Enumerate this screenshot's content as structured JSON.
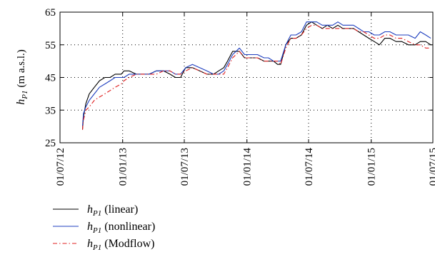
{
  "chart_data": {
    "type": "line",
    "title": "",
    "xlabel": "",
    "ylabel": {
      "base": "h",
      "sub": "P1",
      "unit": "(m a.s.l.)"
    },
    "ylim": [
      25,
      65
    ],
    "yticks": [
      25,
      35,
      45,
      55,
      65
    ],
    "xlim": [
      "2012-07-01",
      "2015-07-01"
    ],
    "xtick_labels": [
      "01/07/12",
      "01/01/13",
      "01/07/13",
      "01/01/14",
      "01/07/14",
      "01/01/15",
      "01/07/15"
    ],
    "xtick_dates": [
      "2012-07-01",
      "2013-01-01",
      "2013-07-01",
      "2014-01-01",
      "2014-07-01",
      "2015-01-01",
      "2015-07-01"
    ],
    "grid": true,
    "legend_placement": "below",
    "series": [
      {
        "name": "(linear)",
        "color": "#000000",
        "dash": "solid",
        "x": [
          "2012-09-05",
          "2012-09-08",
          "2012-09-15",
          "2012-09-25",
          "2012-10-10",
          "2012-10-25",
          "2012-11-10",
          "2012-11-25",
          "2012-12-10",
          "2012-12-28",
          "2013-01-05",
          "2013-01-20",
          "2013-02-10",
          "2013-03-01",
          "2013-03-20",
          "2013-04-10",
          "2013-05-01",
          "2013-05-20",
          "2013-06-05",
          "2013-06-20",
          "2013-07-05",
          "2013-07-25",
          "2013-08-15",
          "2013-09-05",
          "2013-09-25",
          "2013-10-10",
          "2013-10-25",
          "2013-11-05",
          "2013-11-20",
          "2013-12-10",
          "2013-12-25",
          "2014-01-15",
          "2014-02-01",
          "2014-02-20",
          "2014-03-05",
          "2014-03-20",
          "2014-04-01",
          "2014-04-10",
          "2014-04-25",
          "2014-05-10",
          "2014-05-25",
          "2014-06-10",
          "2014-06-25",
          "2014-07-10",
          "2014-07-25",
          "2014-08-10",
          "2014-08-25",
          "2014-09-10",
          "2014-09-25",
          "2014-10-10",
          "2014-10-25",
          "2014-11-10",
          "2014-11-25",
          "2014-12-10",
          "2014-12-25",
          "2015-01-10",
          "2015-01-25",
          "2015-02-10",
          "2015-02-25",
          "2015-03-15",
          "2015-04-01",
          "2015-04-20",
          "2015-05-10",
          "2015-05-25",
          "2015-06-10",
          "2015-06-25"
        ],
        "y": [
          29,
          33,
          37,
          40,
          42,
          44,
          45,
          45,
          46,
          46,
          47,
          47,
          46,
          46,
          46,
          47,
          47,
          46,
          45,
          45,
          48,
          48,
          47,
          46,
          46,
          47,
          48,
          50,
          53,
          53,
          51,
          51,
          51,
          50,
          50,
          50,
          49,
          49,
          55,
          57,
          57,
          58,
          61,
          62,
          61,
          60,
          61,
          60,
          61,
          60,
          60,
          60,
          59,
          58,
          57,
          56,
          55,
          57,
          57,
          56,
          56,
          55,
          55,
          56,
          56,
          55
        ]
      },
      {
        "name": "(nonlinear)",
        "color": "#1f3fbf",
        "dash": "solid",
        "x": [
          "2012-09-05",
          "2012-09-08",
          "2012-09-15",
          "2012-09-25",
          "2012-10-10",
          "2012-10-25",
          "2012-11-10",
          "2012-11-25",
          "2012-12-10",
          "2012-12-28",
          "2013-01-05",
          "2013-01-20",
          "2013-02-10",
          "2013-03-01",
          "2013-03-20",
          "2013-04-10",
          "2013-05-01",
          "2013-05-20",
          "2013-06-05",
          "2013-06-20",
          "2013-07-05",
          "2013-07-25",
          "2013-08-15",
          "2013-09-05",
          "2013-09-25",
          "2013-10-10",
          "2013-10-25",
          "2013-11-05",
          "2013-11-20",
          "2013-12-10",
          "2013-12-25",
          "2014-01-15",
          "2014-02-01",
          "2014-02-20",
          "2014-03-05",
          "2014-03-20",
          "2014-04-01",
          "2014-04-10",
          "2014-04-25",
          "2014-05-10",
          "2014-05-25",
          "2014-06-10",
          "2014-06-25",
          "2014-07-10",
          "2014-07-25",
          "2014-08-10",
          "2014-08-25",
          "2014-09-10",
          "2014-09-25",
          "2014-10-10",
          "2014-10-25",
          "2014-11-10",
          "2014-11-25",
          "2014-12-10",
          "2014-12-25",
          "2015-01-10",
          "2015-01-25",
          "2015-02-10",
          "2015-02-25",
          "2015-03-15",
          "2015-04-01",
          "2015-04-20",
          "2015-05-10",
          "2015-05-25",
          "2015-06-10",
          "2015-06-25"
        ],
        "y": [
          30,
          34,
          36,
          38,
          40,
          42,
          43,
          44,
          45,
          45,
          45,
          46,
          46,
          46,
          46,
          47,
          47,
          47,
          46,
          46,
          48,
          49,
          48,
          47,
          46,
          46,
          47,
          49,
          52,
          54,
          52,
          52,
          52,
          51,
          51,
          50,
          50,
          50,
          55,
          58,
          58,
          59,
          62,
          62,
          62,
          61,
          61,
          61,
          62,
          61,
          61,
          61,
          60,
          59,
          59,
          58,
          58,
          59,
          59,
          58,
          58,
          58,
          57,
          59,
          58,
          57
        ]
      },
      {
        "name": "(Modflow)",
        "color": "#e02020",
        "dash": "dashdot",
        "x": [
          "2012-09-05",
          "2012-09-08",
          "2012-09-15",
          "2012-09-25",
          "2012-10-10",
          "2012-10-25",
          "2012-11-10",
          "2012-11-25",
          "2012-12-10",
          "2012-12-28",
          "2013-01-05",
          "2013-01-20",
          "2013-02-10",
          "2013-03-01",
          "2013-03-20",
          "2013-04-10",
          "2013-05-01",
          "2013-05-20",
          "2013-06-05",
          "2013-06-20",
          "2013-07-05",
          "2013-07-25",
          "2013-08-15",
          "2013-09-05",
          "2013-09-25",
          "2013-10-10",
          "2013-10-25",
          "2013-11-05",
          "2013-11-20",
          "2013-12-10",
          "2013-12-25",
          "2014-01-15",
          "2014-02-01",
          "2014-02-20",
          "2014-03-05",
          "2014-03-20",
          "2014-04-01",
          "2014-04-10",
          "2014-04-25",
          "2014-05-10",
          "2014-05-25",
          "2014-06-10",
          "2014-06-25",
          "2014-07-10",
          "2014-07-25",
          "2014-08-10",
          "2014-08-25",
          "2014-09-10",
          "2014-09-25",
          "2014-10-10",
          "2014-10-25",
          "2014-11-10",
          "2014-11-25",
          "2014-12-10",
          "2014-12-25",
          "2015-01-10",
          "2015-01-25",
          "2015-02-10",
          "2015-02-25",
          "2015-03-15",
          "2015-04-01",
          "2015-04-20",
          "2015-05-10",
          "2015-05-25",
          "2015-06-10",
          "2015-06-25"
        ],
        "y": [
          29,
          32,
          35,
          36,
          38,
          39,
          40,
          41,
          42,
          43,
          44,
          45,
          46,
          46,
          46,
          46,
          47,
          47,
          46,
          46,
          47,
          48,
          47,
          46,
          46,
          46,
          46,
          48,
          51,
          53,
          51,
          51,
          51,
          50,
          50,
          50,
          50,
          49,
          54,
          57,
          57,
          58,
          60,
          61,
          61,
          60,
          60,
          60,
          60,
          60,
          60,
          60,
          59,
          59,
          58,
          57,
          57,
          58,
          58,
          57,
          57,
          56,
          55,
          55,
          54,
          54
        ]
      }
    ]
  }
}
